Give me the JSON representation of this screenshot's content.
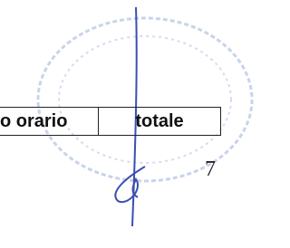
{
  "table": {
    "header": [
      "o orario",
      "totale"
    ]
  },
  "page_number": "7"
}
